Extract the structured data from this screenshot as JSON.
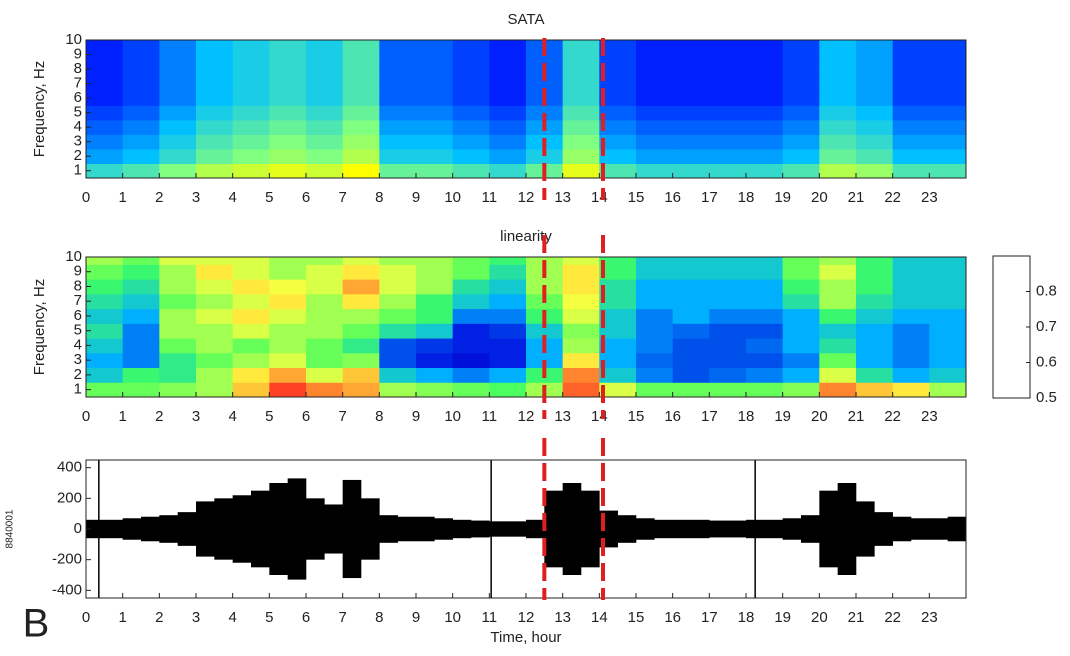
{
  "panel_label": "B",
  "chart_data": [
    {
      "type": "heatmap",
      "title": "SATA",
      "ylabel": "Frequency, Hz",
      "x": [
        0.5,
        1.5,
        2.5,
        3.5,
        4.5,
        5.5,
        6.5,
        7.5,
        8.5,
        9.5,
        10.5,
        11.5,
        12.5,
        13.5,
        14.5,
        15.5,
        16.5,
        17.5,
        18.5,
        19.5,
        20.5,
        21.5,
        22.5,
        23.5
      ],
      "y": [
        1,
        2,
        3,
        4,
        5,
        6,
        7,
        8,
        9,
        10
      ],
      "z": [
        [
          0.6,
          0.65,
          0.75,
          0.85,
          0.9,
          0.95,
          0.9,
          1.0,
          0.7,
          0.7,
          0.65,
          0.6,
          0.7,
          0.95,
          0.65,
          0.6,
          0.6,
          0.6,
          0.6,
          0.65,
          0.85,
          0.8,
          0.65,
          0.65
        ],
        [
          0.45,
          0.5,
          0.6,
          0.7,
          0.75,
          0.8,
          0.75,
          0.85,
          0.55,
          0.55,
          0.5,
          0.45,
          0.55,
          0.8,
          0.5,
          0.45,
          0.45,
          0.45,
          0.45,
          0.5,
          0.7,
          0.65,
          0.5,
          0.5
        ],
        [
          0.4,
          0.45,
          0.55,
          0.65,
          0.7,
          0.75,
          0.7,
          0.8,
          0.5,
          0.5,
          0.45,
          0.4,
          0.5,
          0.75,
          0.45,
          0.4,
          0.4,
          0.4,
          0.4,
          0.45,
          0.65,
          0.6,
          0.45,
          0.45
        ],
        [
          0.35,
          0.4,
          0.5,
          0.6,
          0.65,
          0.7,
          0.65,
          0.75,
          0.45,
          0.45,
          0.4,
          0.35,
          0.45,
          0.7,
          0.4,
          0.35,
          0.35,
          0.35,
          0.35,
          0.4,
          0.6,
          0.55,
          0.4,
          0.4
        ],
        [
          0.3,
          0.35,
          0.45,
          0.55,
          0.6,
          0.65,
          0.6,
          0.7,
          0.4,
          0.4,
          0.35,
          0.3,
          0.4,
          0.65,
          0.35,
          0.3,
          0.3,
          0.3,
          0.3,
          0.35,
          0.55,
          0.5,
          0.35,
          0.35
        ],
        [
          0.25,
          0.3,
          0.4,
          0.5,
          0.55,
          0.6,
          0.55,
          0.65,
          0.35,
          0.35,
          0.3,
          0.25,
          0.35,
          0.6,
          0.3,
          0.25,
          0.25,
          0.25,
          0.25,
          0.3,
          0.5,
          0.45,
          0.3,
          0.3
        ],
        [
          0.25,
          0.3,
          0.4,
          0.5,
          0.55,
          0.6,
          0.55,
          0.65,
          0.35,
          0.35,
          0.3,
          0.25,
          0.35,
          0.6,
          0.3,
          0.25,
          0.25,
          0.25,
          0.25,
          0.3,
          0.5,
          0.45,
          0.3,
          0.3
        ],
        [
          0.25,
          0.3,
          0.4,
          0.5,
          0.55,
          0.6,
          0.55,
          0.65,
          0.35,
          0.35,
          0.3,
          0.25,
          0.35,
          0.6,
          0.3,
          0.25,
          0.25,
          0.25,
          0.25,
          0.3,
          0.5,
          0.45,
          0.3,
          0.3
        ],
        [
          0.25,
          0.3,
          0.4,
          0.5,
          0.55,
          0.6,
          0.55,
          0.65,
          0.35,
          0.35,
          0.3,
          0.25,
          0.35,
          0.6,
          0.3,
          0.25,
          0.25,
          0.25,
          0.25,
          0.3,
          0.5,
          0.45,
          0.3,
          0.3
        ],
        [
          0.25,
          0.3,
          0.4,
          0.5,
          0.55,
          0.6,
          0.55,
          0.65,
          0.35,
          0.35,
          0.3,
          0.25,
          0.35,
          0.6,
          0.3,
          0.25,
          0.25,
          0.25,
          0.25,
          0.3,
          0.5,
          0.45,
          0.3,
          0.3
        ]
      ],
      "clim": [
        0,
        1
      ],
      "colormap": [
        "#00007f",
        "#0020ff",
        "#00c0ff",
        "#80ff80",
        "#ffff00"
      ],
      "xlim": [
        0,
        24
      ],
      "xticks": [
        0,
        1,
        2,
        3,
        4,
        5,
        6,
        7,
        8,
        9,
        10,
        11,
        12,
        13,
        14,
        15,
        16,
        17,
        18,
        19,
        20,
        21,
        22,
        23
      ],
      "ylim": [
        0.5,
        10
      ],
      "yticks": [
        1,
        2,
        3,
        4,
        5,
        6,
        7,
        8,
        9,
        10
      ],
      "markers": {
        "x": [
          12.5,
          14.1
        ],
        "color": "#e02020"
      }
    },
    {
      "type": "heatmap",
      "title": "linearity",
      "ylabel": "Frequency, Hz",
      "x": [
        0.5,
        1.5,
        2.5,
        3.5,
        4.5,
        5.5,
        6.5,
        7.5,
        8.5,
        9.5,
        10.5,
        11.5,
        12.5,
        13.5,
        14.5,
        15.5,
        16.5,
        17.5,
        18.5,
        19.5,
        20.5,
        21.5,
        22.5,
        23.5
      ],
      "y": [
        1,
        2,
        3,
        4,
        5,
        6,
        7,
        8,
        9,
        10
      ],
      "z": [
        [
          0.78,
          0.78,
          0.79,
          0.8,
          0.85,
          0.89,
          0.87,
          0.86,
          0.8,
          0.79,
          0.78,
          0.77,
          0.8,
          0.88,
          0.82,
          0.78,
          0.78,
          0.78,
          0.78,
          0.79,
          0.87,
          0.85,
          0.84,
          0.8
        ],
        [
          0.72,
          0.76,
          0.75,
          0.8,
          0.84,
          0.86,
          0.82,
          0.85,
          0.72,
          0.7,
          0.68,
          0.7,
          0.76,
          0.87,
          0.72,
          0.68,
          0.66,
          0.67,
          0.68,
          0.7,
          0.82,
          0.74,
          0.7,
          0.72
        ],
        [
          0.7,
          0.68,
          0.75,
          0.78,
          0.8,
          0.82,
          0.78,
          0.79,
          0.66,
          0.64,
          0.63,
          0.64,
          0.7,
          0.84,
          0.7,
          0.67,
          0.66,
          0.66,
          0.66,
          0.68,
          0.78,
          0.7,
          0.68,
          0.7
        ],
        [
          0.72,
          0.68,
          0.78,
          0.8,
          0.78,
          0.8,
          0.78,
          0.75,
          0.66,
          0.65,
          0.64,
          0.64,
          0.7,
          0.8,
          0.7,
          0.68,
          0.66,
          0.66,
          0.67,
          0.7,
          0.74,
          0.7,
          0.68,
          0.7
        ],
        [
          0.74,
          0.68,
          0.8,
          0.8,
          0.82,
          0.8,
          0.8,
          0.78,
          0.74,
          0.72,
          0.64,
          0.65,
          0.72,
          0.79,
          0.72,
          0.68,
          0.67,
          0.66,
          0.66,
          0.7,
          0.72,
          0.7,
          0.68,
          0.7
        ],
        [
          0.72,
          0.7,
          0.8,
          0.82,
          0.84,
          0.82,
          0.8,
          0.8,
          0.78,
          0.76,
          0.68,
          0.68,
          0.76,
          0.82,
          0.72,
          0.68,
          0.7,
          0.68,
          0.68,
          0.7,
          0.76,
          0.72,
          0.7,
          0.7
        ],
        [
          0.74,
          0.72,
          0.78,
          0.8,
          0.82,
          0.84,
          0.8,
          0.84,
          0.8,
          0.76,
          0.72,
          0.7,
          0.78,
          0.83,
          0.74,
          0.7,
          0.7,
          0.7,
          0.7,
          0.74,
          0.8,
          0.74,
          0.72,
          0.72
        ],
        [
          0.76,
          0.74,
          0.8,
          0.82,
          0.84,
          0.83,
          0.82,
          0.86,
          0.82,
          0.8,
          0.74,
          0.72,
          0.8,
          0.84,
          0.74,
          0.7,
          0.7,
          0.7,
          0.7,
          0.76,
          0.8,
          0.76,
          0.72,
          0.72
        ],
        [
          0.78,
          0.76,
          0.8,
          0.84,
          0.82,
          0.8,
          0.82,
          0.84,
          0.82,
          0.8,
          0.78,
          0.74,
          0.8,
          0.84,
          0.76,
          0.72,
          0.72,
          0.72,
          0.72,
          0.78,
          0.82,
          0.76,
          0.72,
          0.72
        ],
        [
          0.8,
          0.78,
          0.82,
          0.82,
          0.82,
          0.8,
          0.8,
          0.82,
          0.8,
          0.8,
          0.78,
          0.76,
          0.8,
          0.82,
          0.76,
          0.72,
          0.72,
          0.72,
          0.72,
          0.78,
          0.8,
          0.76,
          0.72,
          0.72
        ]
      ],
      "clim": [
        0.5,
        0.9
      ],
      "colormap": [
        "#000000",
        "#180a50",
        "#0010e0",
        "#00b0ff",
        "#40ff60",
        "#ffff40",
        "#ff2020"
      ],
      "cticks": [
        0.5,
        0.6,
        0.7,
        0.8
      ],
      "xlim": [
        0,
        24
      ],
      "xticks": [
        0,
        1,
        2,
        3,
        4,
        5,
        6,
        7,
        8,
        9,
        10,
        11,
        12,
        13,
        14,
        15,
        16,
        17,
        18,
        19,
        20,
        21,
        22,
        23
      ],
      "ylim": [
        0.5,
        10
      ],
      "yticks": [
        1,
        2,
        3,
        4,
        5,
        6,
        7,
        8,
        9,
        10
      ],
      "markers": {
        "x": [
          12.5,
          14.1
        ],
        "color": "#e02020"
      }
    },
    {
      "type": "waveform",
      "ylabel": "8840001",
      "xlabel": "Time, hour",
      "color": "#000000",
      "x": [
        0.25,
        0.75,
        1.25,
        1.75,
        2.25,
        2.75,
        3.25,
        3.75,
        4.25,
        4.75,
        5.25,
        5.75,
        6.25,
        6.75,
        7.25,
        7.75,
        8.25,
        8.75,
        9.25,
        9.75,
        10.25,
        10.75,
        11.25,
        11.75,
        12.25,
        12.75,
        13.25,
        13.75,
        14.25,
        14.75,
        15.25,
        15.75,
        16.25,
        16.75,
        17.25,
        17.75,
        18.25,
        18.75,
        19.25,
        19.75,
        20.25,
        20.75,
        21.25,
        21.75,
        22.25,
        22.75,
        23.25,
        23.75
      ],
      "values": [
        60,
        60,
        70,
        80,
        90,
        110,
        180,
        200,
        220,
        250,
        300,
        330,
        200,
        160,
        320,
        200,
        90,
        80,
        80,
        70,
        60,
        55,
        50,
        50,
        60,
        250,
        300,
        250,
        120,
        90,
        70,
        60,
        60,
        60,
        55,
        55,
        60,
        60,
        70,
        90,
        250,
        300,
        180,
        110,
        80,
        70,
        70,
        80
      ],
      "glitches": {
        "x": [
          0.35,
          11.05,
          18.25
        ],
        "values": [
          450,
          450,
          450
        ]
      },
      "xlim": [
        0,
        24
      ],
      "xticks": [
        0,
        1,
        2,
        3,
        4,
        5,
        6,
        7,
        8,
        9,
        10,
        11,
        12,
        13,
        14,
        15,
        16,
        17,
        18,
        19,
        20,
        21,
        22,
        23
      ],
      "ylim": [
        -450,
        450
      ],
      "yticks": [
        -400,
        -200,
        0,
        200,
        400
      ],
      "markers": {
        "x": [
          12.5,
          14.1
        ],
        "color": "#e02020"
      }
    }
  ]
}
